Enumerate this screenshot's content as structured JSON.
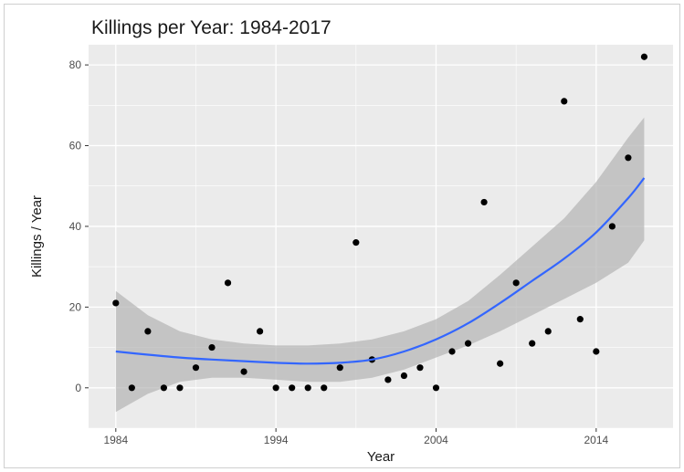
{
  "chart_data": {
    "type": "scatter",
    "title": "Killings per Year: 1984-2017",
    "xlabel": "Year",
    "ylabel": "Killings / Year",
    "xlim": [
      1982.3,
      2018.8
    ],
    "ylim": [
      -10,
      85
    ],
    "x_ticks": [
      1984,
      1994,
      2004,
      2014
    ],
    "y_ticks": [
      0,
      20,
      40,
      60,
      80
    ],
    "grid": true,
    "legend": "none",
    "colors": {
      "panel": "#ebebeb",
      "grid": "#ffffff",
      "points": "#000000",
      "smooth_line": "#3366ff",
      "confidence_band": "#b3b3b3"
    },
    "points": {
      "x": [
        1984,
        1985,
        1986,
        1987,
        1988,
        1989,
        1990,
        1991,
        1992,
        1993,
        1994,
        1995,
        1996,
        1997,
        1998,
        1999,
        2000,
        2001,
        2002,
        2003,
        2004,
        2005,
        2006,
        2007,
        2008,
        2009,
        2010,
        2011,
        2012,
        2013,
        2014,
        2015,
        2016,
        2017
      ],
      "y": [
        21,
        0,
        14,
        0,
        0,
        5,
        10,
        26,
        4,
        14,
        0,
        0,
        0,
        0,
        5,
        36,
        7,
        2,
        3,
        5,
        0,
        9,
        11,
        46,
        6,
        26,
        11,
        14,
        71,
        17,
        9,
        40,
        57,
        82
      ]
    },
    "smooth_fit": {
      "x": [
        1984,
        1986,
        1988,
        1990,
        1992,
        1994,
        1996,
        1998,
        2000,
        2002,
        2004,
        2006,
        2008,
        2010,
        2012,
        2014,
        2016,
        2017
      ],
      "y": [
        9,
        8.2,
        7.5,
        7,
        6.6,
        6.2,
        6,
        6.2,
        7,
        9,
        12,
        16,
        21,
        26.5,
        32,
        38.5,
        47,
        52
      ],
      "lower": [
        -6,
        -1.5,
        1.5,
        2.5,
        2.5,
        2,
        1.5,
        1.5,
        2.5,
        4.5,
        7.5,
        10.5,
        14,
        18,
        22,
        26,
        31,
        36.5
      ],
      "upper": [
        24,
        18,
        14,
        12,
        11,
        10.5,
        10.5,
        11,
        12,
        14,
        17,
        21.5,
        28,
        35,
        42,
        51,
        62,
        67
      ]
    }
  }
}
